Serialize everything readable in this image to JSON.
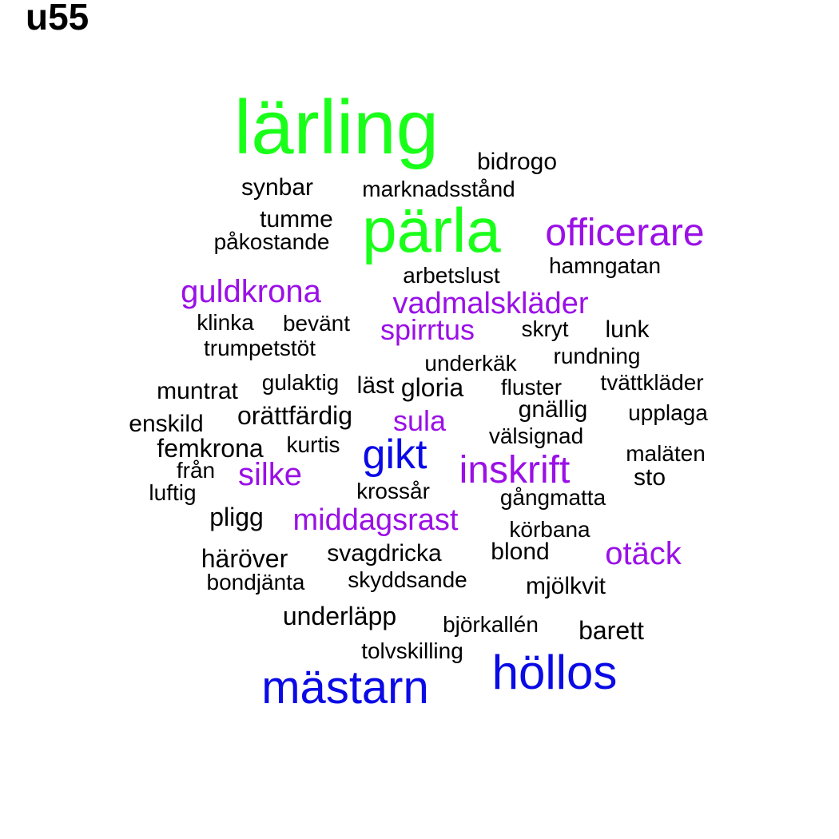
{
  "title": "u55",
  "colors": {
    "green": "#19ff19",
    "purple": "#9a10e6",
    "blue": "#0a0ae6",
    "black": "#000000"
  },
  "words": [
    {
      "text": "lärling",
      "color": "green"
    },
    {
      "text": "pärla",
      "color": "green"
    },
    {
      "text": "officerare",
      "color": "purple"
    },
    {
      "text": "guldkrona",
      "color": "purple"
    },
    {
      "text": "vadmalskläder",
      "color": "purple"
    },
    {
      "text": "spirrtus",
      "color": "purple"
    },
    {
      "text": "sula",
      "color": "purple"
    },
    {
      "text": "gikt",
      "color": "blue"
    },
    {
      "text": "inskrift",
      "color": "purple"
    },
    {
      "text": "silke",
      "color": "purple"
    },
    {
      "text": "middagsrast",
      "color": "purple"
    },
    {
      "text": "otäck",
      "color": "purple"
    },
    {
      "text": "höllos",
      "color": "blue"
    },
    {
      "text": "mästarn",
      "color": "blue"
    },
    {
      "text": "bidrogo",
      "color": "black"
    },
    {
      "text": "synbar",
      "color": "black"
    },
    {
      "text": "marknadsstånd",
      "color": "black"
    },
    {
      "text": "tumme",
      "color": "black"
    },
    {
      "text": "påkostande",
      "color": "black"
    },
    {
      "text": "hamngatan",
      "color": "black"
    },
    {
      "text": "arbetslust",
      "color": "black"
    },
    {
      "text": "klinka",
      "color": "black"
    },
    {
      "text": "bevänt",
      "color": "black"
    },
    {
      "text": "skryt",
      "color": "black"
    },
    {
      "text": "lunk",
      "color": "black"
    },
    {
      "text": "trumpetstöt",
      "color": "black"
    },
    {
      "text": "underkäk",
      "color": "black"
    },
    {
      "text": "rundning",
      "color": "black"
    },
    {
      "text": "muntrat",
      "color": "black"
    },
    {
      "text": "gulaktig",
      "color": "black"
    },
    {
      "text": "läst",
      "color": "black"
    },
    {
      "text": "gloria",
      "color": "black"
    },
    {
      "text": "fluster",
      "color": "black"
    },
    {
      "text": "tvättkläder",
      "color": "black"
    },
    {
      "text": "enskild",
      "color": "black"
    },
    {
      "text": "orättfärdig",
      "color": "black"
    },
    {
      "text": "gnällig",
      "color": "black"
    },
    {
      "text": "upplaga",
      "color": "black"
    },
    {
      "text": "femkrona",
      "color": "black"
    },
    {
      "text": "kurtis",
      "color": "black"
    },
    {
      "text": "välsignad",
      "color": "black"
    },
    {
      "text": "maläten",
      "color": "black"
    },
    {
      "text": "från",
      "color": "black"
    },
    {
      "text": "sto",
      "color": "black"
    },
    {
      "text": "luftig",
      "color": "black"
    },
    {
      "text": "krossår",
      "color": "black"
    },
    {
      "text": "gångmatta",
      "color": "black"
    },
    {
      "text": "pligg",
      "color": "black"
    },
    {
      "text": "körbana",
      "color": "black"
    },
    {
      "text": "häröver",
      "color": "black"
    },
    {
      "text": "svagdricka",
      "color": "black"
    },
    {
      "text": "blond",
      "color": "black"
    },
    {
      "text": "bondjänta",
      "color": "black"
    },
    {
      "text": "skyddsande",
      "color": "black"
    },
    {
      "text": "mjölkvit",
      "color": "black"
    },
    {
      "text": "underläpp",
      "color": "black"
    },
    {
      "text": "björkallén",
      "color": "black"
    },
    {
      "text": "barett",
      "color": "black"
    },
    {
      "text": "tolvskilling",
      "color": "black"
    }
  ]
}
